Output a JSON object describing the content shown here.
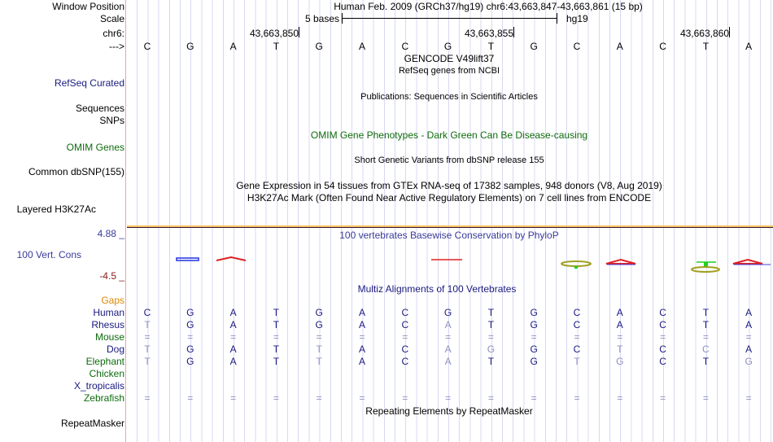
{
  "labels": {
    "window_position": "Window Position",
    "scale": "Scale",
    "chr": "chr6:",
    "strand": "--->",
    "refseq_curated": "RefSeq Curated",
    "sequences": "Sequences",
    "snps": "SNPs",
    "omim_genes": "OMIM Genes",
    "common_dbsnp": "Common dbSNP(155)",
    "layered": "Layered H3K27Ac",
    "phylop_max": "4.88 _",
    "vert_cons": "100 Vert. Cons",
    "phylop_min": "-4.5 _",
    "gaps": "Gaps",
    "repeatmasker": "RepeatMasker"
  },
  "header": {
    "title": "Human Feb. 2009 (GRCh37/hg19)   chr6:43,663,847-43,663,861 (15 bp)",
    "scale_label": "5 bases",
    "assembly": "hg19",
    "positions": [
      "43,663,850",
      "43,663,855",
      "43,663,860"
    ]
  },
  "reference": "CGATGACGTGCACTA",
  "tracks": {
    "gencode": "GENCODE V49lift37",
    "refseq": "RefSeq genes from NCBI",
    "publications": "Publications: Sequences in Scientific Articles",
    "omim_pheno": "OMIM Gene Phenotypes - Dark Green Can Be Disease-causing",
    "dbsnp": "Short Genetic Variants from dbSNP release 155",
    "gtex": "Gene Expression in 54 tissues from GTEx RNA-seq of 17382 samples, 948 donors (V8, Aug 2019)",
    "h3k27ac": "H3K27Ac Mark (Often Found Near Active Regulatory Elements) on 7 cell lines from ENCODE",
    "phylop": "100 vertebrates Basewise Conservation by PhyloP",
    "multiz": "Multiz Alignments of 100 Vertebrates",
    "repeats": "Repeating Elements by RepeatMasker"
  },
  "alignment": [
    {
      "species": "Human",
      "color": "navy",
      "bases": "CGATGACGTGCACTA",
      "faint": []
    },
    {
      "species": "Rhesus",
      "color": "navy",
      "bases": "TGATGACATGCACTA",
      "faint": [
        0,
        7
      ]
    },
    {
      "species": "Mouse",
      "color": "green",
      "bases": "===============",
      "faint": [
        0,
        1,
        2,
        3,
        4,
        5,
        6,
        7,
        8,
        9,
        10,
        11,
        12,
        13,
        14
      ]
    },
    {
      "species": "Dog",
      "color": "navy",
      "bases": "TGATTACAGGCTCCA",
      "faint": [
        0,
        4,
        7,
        8,
        11,
        13
      ]
    },
    {
      "species": "Elephant",
      "color": "green",
      "bases": "TGATTACATGTGCTG",
      "faint": [
        0,
        4,
        7,
        10,
        11,
        14
      ]
    },
    {
      "species": "Chicken",
      "color": "green",
      "bases": "",
      "faint": []
    },
    {
      "species": "X_tropicalis",
      "color": "navy",
      "bases": "",
      "faint": []
    },
    {
      "species": "Zebrafish",
      "color": "green",
      "bases": "===============",
      "faint": [
        0,
        1,
        2,
        3,
        4,
        5,
        6,
        7,
        8,
        9,
        10,
        11,
        12,
        13,
        14
      ]
    }
  ]
}
